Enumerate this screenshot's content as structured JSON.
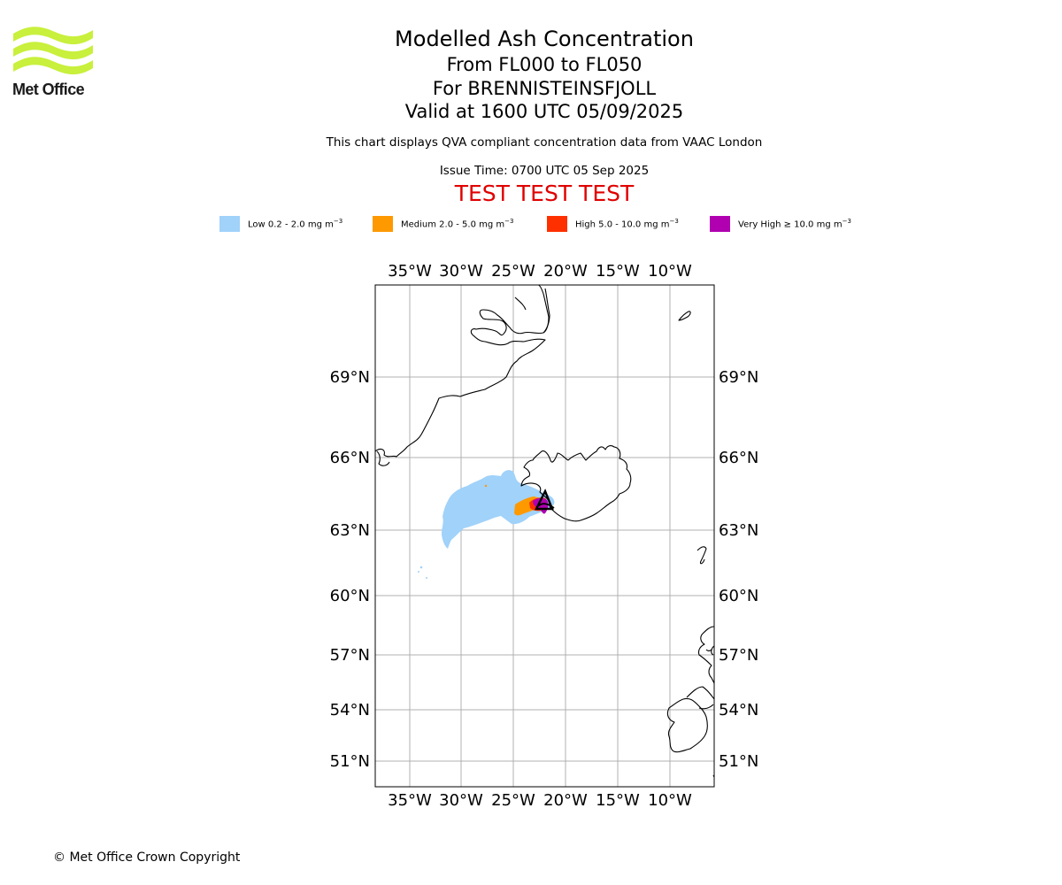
{
  "logo": {
    "text": "Met Office",
    "icon": "met-office-wave-logo",
    "color": "#c8f03c"
  },
  "titles": {
    "line1": "Modelled Ash Concentration",
    "line2": "From FL000 to FL050",
    "line3": "For BRENNISTEINSFJOLL",
    "line4": "Valid at 1600 UTC 05/09/2025",
    "subtitle": "This chart displays QVA compliant concentration data from VAAC London",
    "issue": "Issue Time: 0700 UTC 05 Sep 2025",
    "test": "TEST TEST TEST"
  },
  "legend": [
    {
      "label": "Low 0.2 - 2.0 mg m",
      "sup": "−3",
      "color": "#a0d2fa"
    },
    {
      "label": "Medium 2.0 - 5.0 mg m",
      "sup": "−3",
      "color": "#ff9900"
    },
    {
      "label": "High 5.0 - 10.0 mg m",
      "sup": "−3",
      "color": "#ff3000"
    },
    {
      "label": "Very High  ≥  10.0 mg m",
      "sup": "−3",
      "color": "#b000b0"
    }
  ],
  "map": {
    "longitudes": [
      "35°W",
      "30°W",
      "25°W",
      "20°W",
      "15°W",
      "10°W"
    ],
    "latitudes": [
      "69°N",
      "66°N",
      "63°N",
      "60°N",
      "57°N",
      "54°N",
      "51°N"
    ],
    "gridlines": true,
    "volcano_marker": "black-triangle-outline"
  },
  "footer": {
    "copyright": "© Met Office Crown Copyright"
  }
}
